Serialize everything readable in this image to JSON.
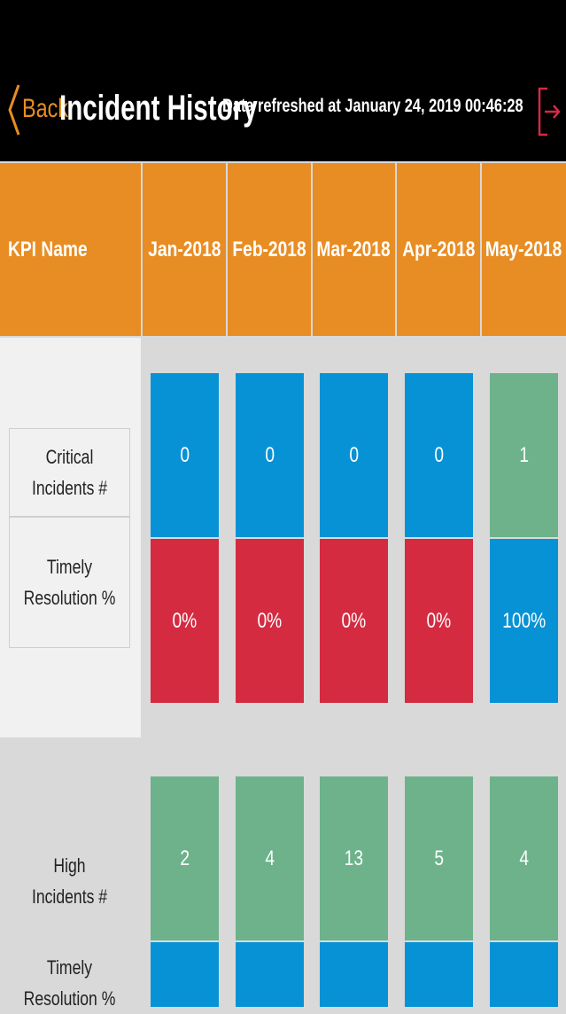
{
  "header": {
    "back_label": "Back",
    "title": "Incident History",
    "refresh_text": "Data refreshed at January 24, 2019 00:46:28",
    "logout_icon": "logout-icon"
  },
  "table": {
    "kpi_header": "KPI Name",
    "months": [
      "Jan-2018",
      "Feb-2018",
      "Mar-2018",
      "Apr-2018",
      "May-2018"
    ]
  },
  "groups": [
    {
      "rows": [
        {
          "label": "Critical Incidents #",
          "values": [
            "0",
            "0",
            "0",
            "0",
            "1"
          ],
          "colors": [
            "blue",
            "blue",
            "blue",
            "blue",
            "green"
          ]
        },
        {
          "label": "Timely Resolution %",
          "values": [
            "0%",
            "0%",
            "0%",
            "0%",
            "100%"
          ],
          "colors": [
            "red",
            "red",
            "red",
            "red",
            "blue"
          ]
        }
      ]
    },
    {
      "rows": [
        {
          "label": "High Incidents #",
          "values": [
            "2",
            "4",
            "13",
            "5",
            "4"
          ],
          "colors": [
            "green",
            "green",
            "green",
            "green",
            "green"
          ]
        },
        {
          "label": "Timely Resolution %",
          "values": [
            "",
            "",
            "",
            "",
            ""
          ],
          "colors": [
            "blue",
            "blue",
            "blue",
            "blue",
            "blue"
          ]
        }
      ]
    }
  ],
  "colors": {
    "accent": "#e88d24",
    "blue": "#0892d6",
    "green": "#6db28b",
    "red": "#d42b41"
  }
}
